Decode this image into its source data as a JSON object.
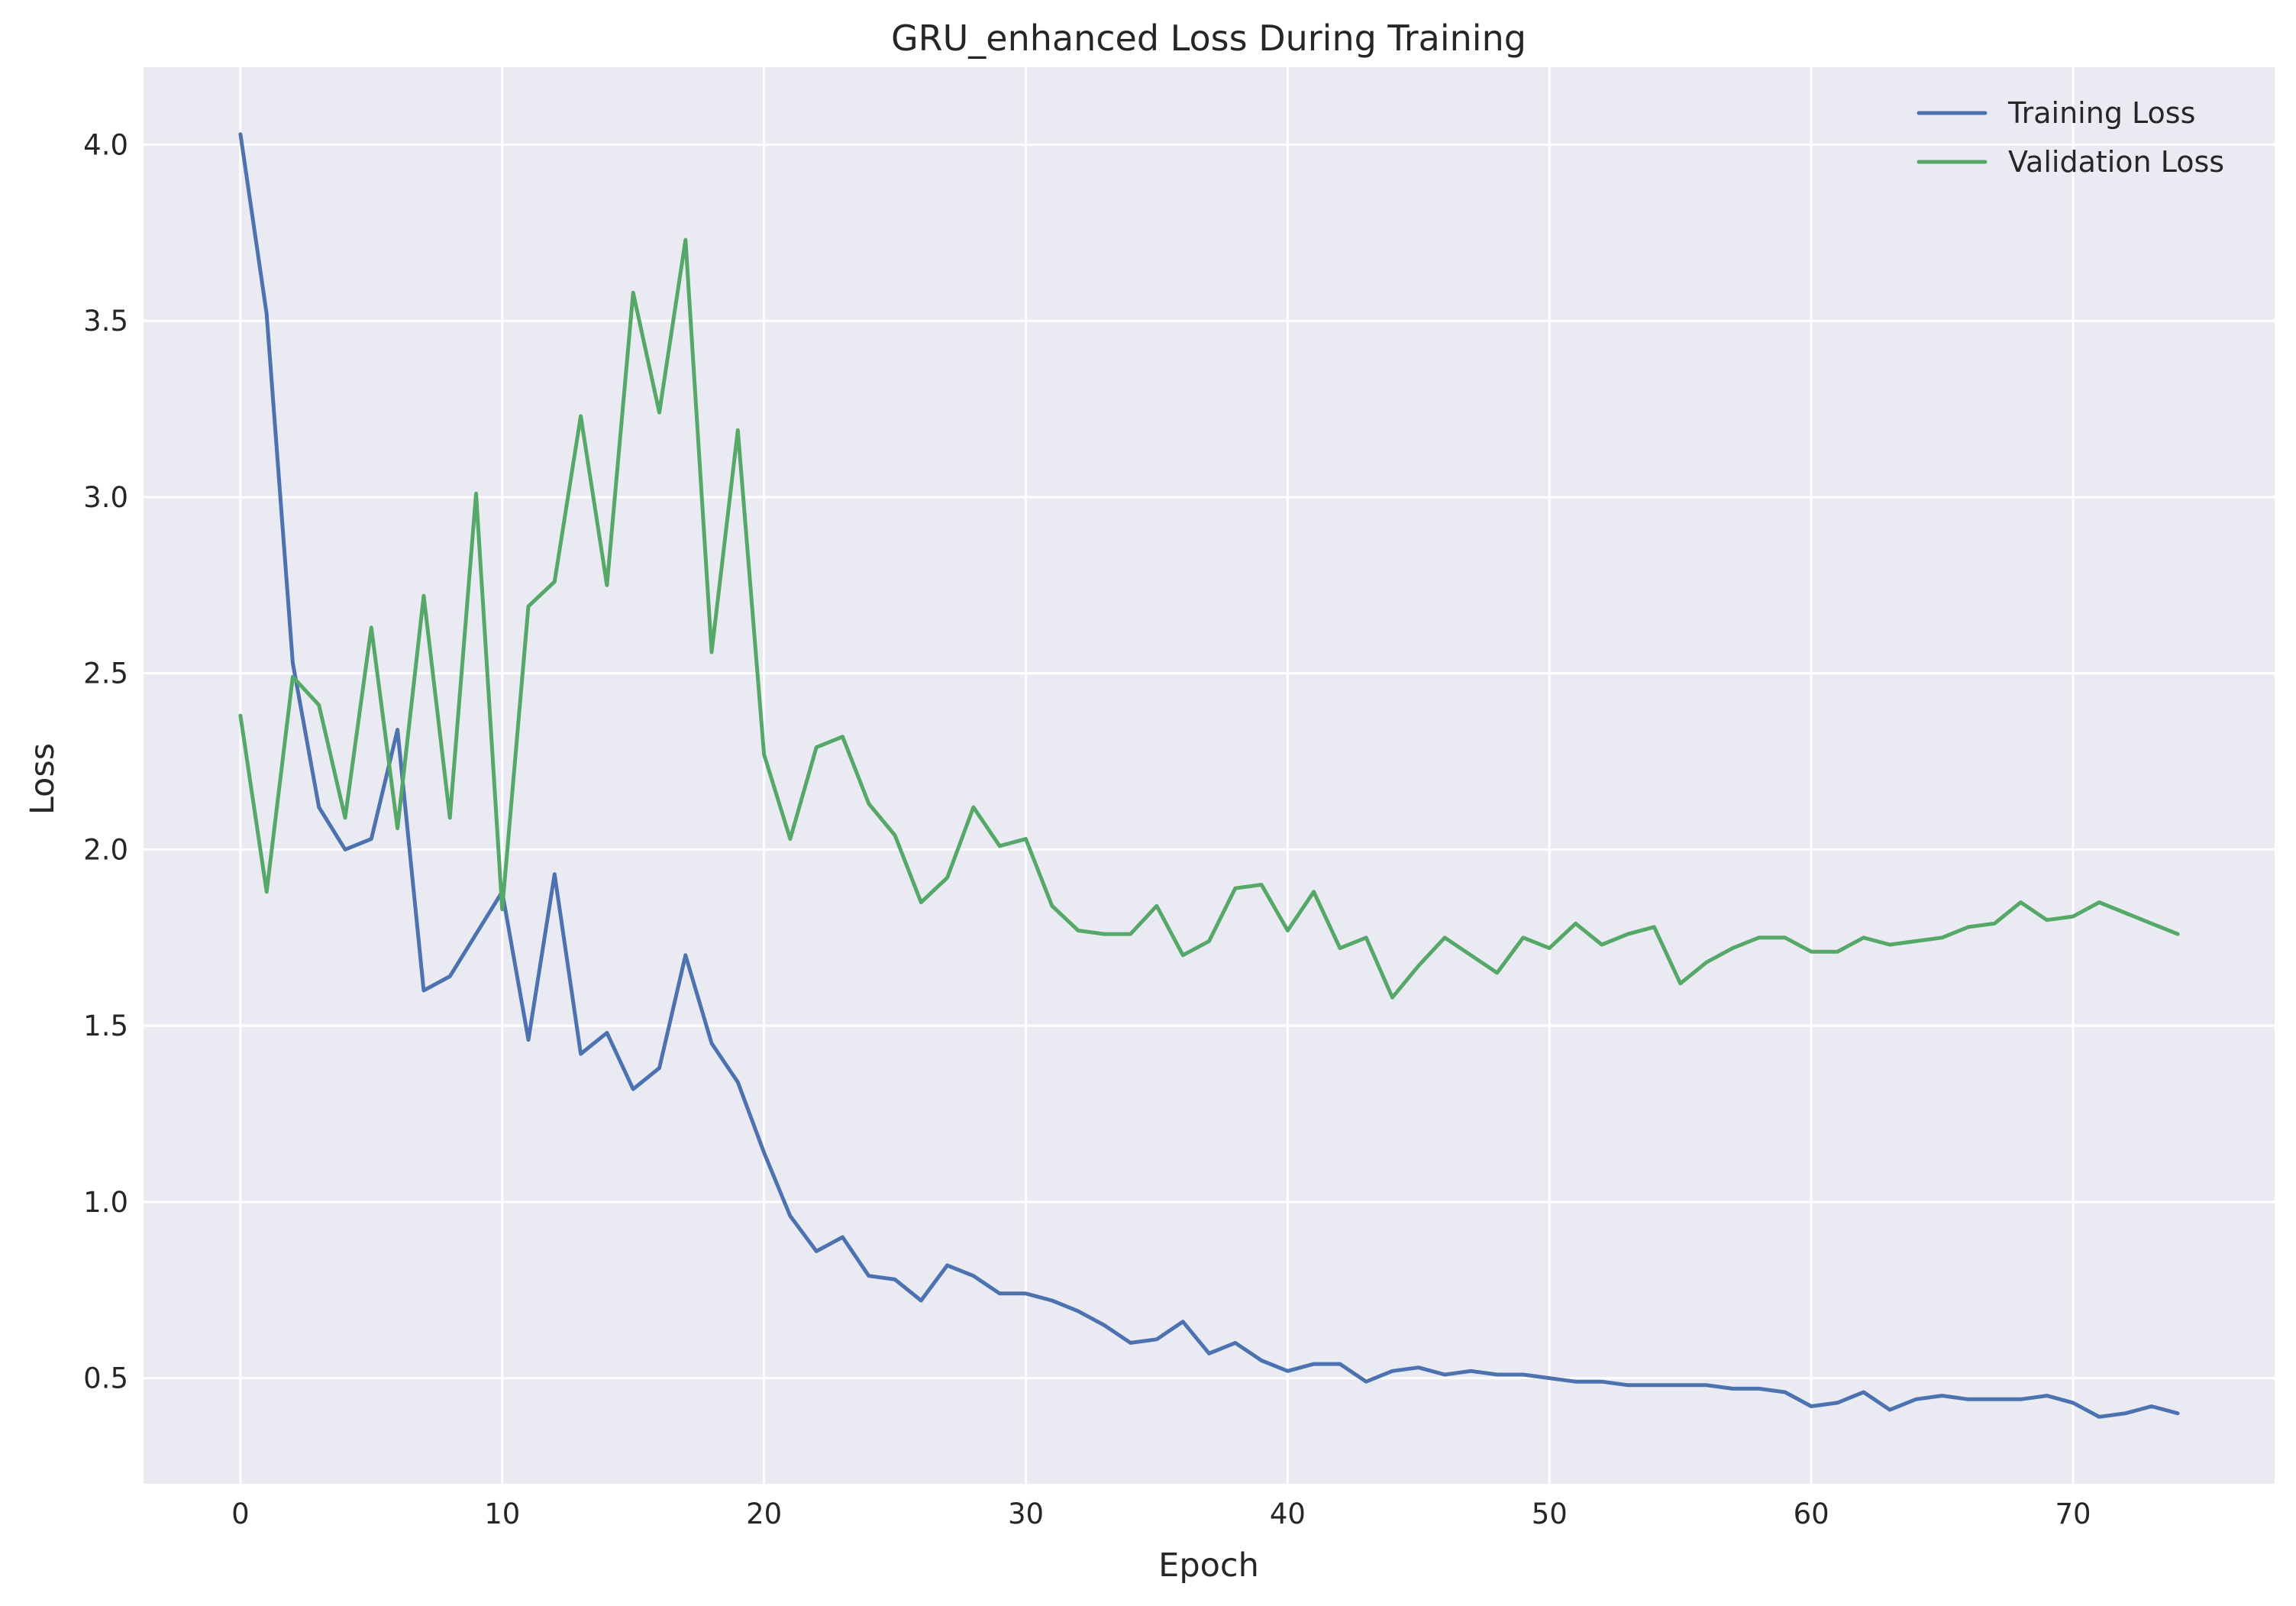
{
  "chart_data": {
    "type": "line",
    "title": "GRU_enhanced Loss During Training",
    "xlabel": "Epoch",
    "ylabel": "Loss",
    "xlim": [
      -3.7,
      77.7
    ],
    "ylim": [
      0.2,
      4.22
    ],
    "x_ticks": [
      0,
      10,
      20,
      30,
      40,
      50,
      60,
      70
    ],
    "x_tick_labels": [
      "0",
      "10",
      "20",
      "30",
      "40",
      "50",
      "60",
      "70"
    ],
    "y_ticks": [
      0.5,
      1.0,
      1.5,
      2.0,
      2.5,
      3.0,
      3.5,
      4.0
    ],
    "y_tick_labels": [
      "0.5",
      "1.0",
      "1.5",
      "2.0",
      "2.5",
      "3.0",
      "3.5",
      "4.0"
    ],
    "grid": true,
    "legend_position": "top-right",
    "x": [
      0,
      1,
      2,
      3,
      4,
      5,
      6,
      7,
      8,
      9,
      10,
      11,
      12,
      13,
      14,
      15,
      16,
      17,
      18,
      19,
      20,
      21,
      22,
      23,
      24,
      25,
      26,
      27,
      28,
      29,
      30,
      31,
      32,
      33,
      34,
      35,
      36,
      37,
      38,
      39,
      40,
      41,
      42,
      43,
      44,
      45,
      46,
      47,
      48,
      49,
      50,
      51,
      52,
      53,
      54,
      55,
      56,
      57,
      58,
      59,
      60,
      61,
      62,
      63,
      64,
      65,
      66,
      67,
      68,
      69,
      70,
      71,
      72,
      73,
      74
    ],
    "series": [
      {
        "name": "Training Loss",
        "color": "#4c72b0",
        "values": [
          4.03,
          3.52,
          2.53,
          2.12,
          2.0,
          2.03,
          2.34,
          1.6,
          1.64,
          1.76,
          1.88,
          1.46,
          1.93,
          1.42,
          1.48,
          1.32,
          1.38,
          1.7,
          1.45,
          1.34,
          1.14,
          0.96,
          0.86,
          0.9,
          0.79,
          0.78,
          0.72,
          0.82,
          0.79,
          0.74,
          0.74,
          0.72,
          0.69,
          0.65,
          0.6,
          0.61,
          0.66,
          0.57,
          0.6,
          0.55,
          0.52,
          0.54,
          0.54,
          0.49,
          0.52,
          0.53,
          0.51,
          0.52,
          0.51,
          0.51,
          0.5,
          0.49,
          0.49,
          0.48,
          0.48,
          0.48,
          0.48,
          0.47,
          0.47,
          0.46,
          0.42,
          0.43,
          0.46,
          0.41,
          0.44,
          0.45,
          0.44,
          0.44,
          0.44,
          0.45,
          0.43,
          0.39,
          0.4,
          0.42,
          0.4
        ]
      },
      {
        "name": "Validation Loss",
        "color": "#55a868",
        "values": [
          2.38,
          1.88,
          2.49,
          2.41,
          2.09,
          2.63,
          2.06,
          2.72,
          2.09,
          3.01,
          1.83,
          2.69,
          2.76,
          3.23,
          2.75,
          3.58,
          3.24,
          3.73,
          2.56,
          3.19,
          2.27,
          2.03,
          2.29,
          2.32,
          2.13,
          2.04,
          1.85,
          1.92,
          2.12,
          2.01,
          2.03,
          1.84,
          1.77,
          1.76,
          1.76,
          1.84,
          1.7,
          1.74,
          1.89,
          1.9,
          1.77,
          1.88,
          1.72,
          1.75,
          1.58,
          1.67,
          1.75,
          1.7,
          1.65,
          1.75,
          1.72,
          1.79,
          1.73,
          1.76,
          1.78,
          1.62,
          1.68,
          1.72,
          1.75,
          1.75,
          1.71,
          1.71,
          1.75,
          1.73,
          1.74,
          1.75,
          1.78,
          1.79,
          1.85,
          1.8,
          1.81,
          1.85,
          1.82,
          1.79,
          1.76
        ]
      }
    ]
  }
}
